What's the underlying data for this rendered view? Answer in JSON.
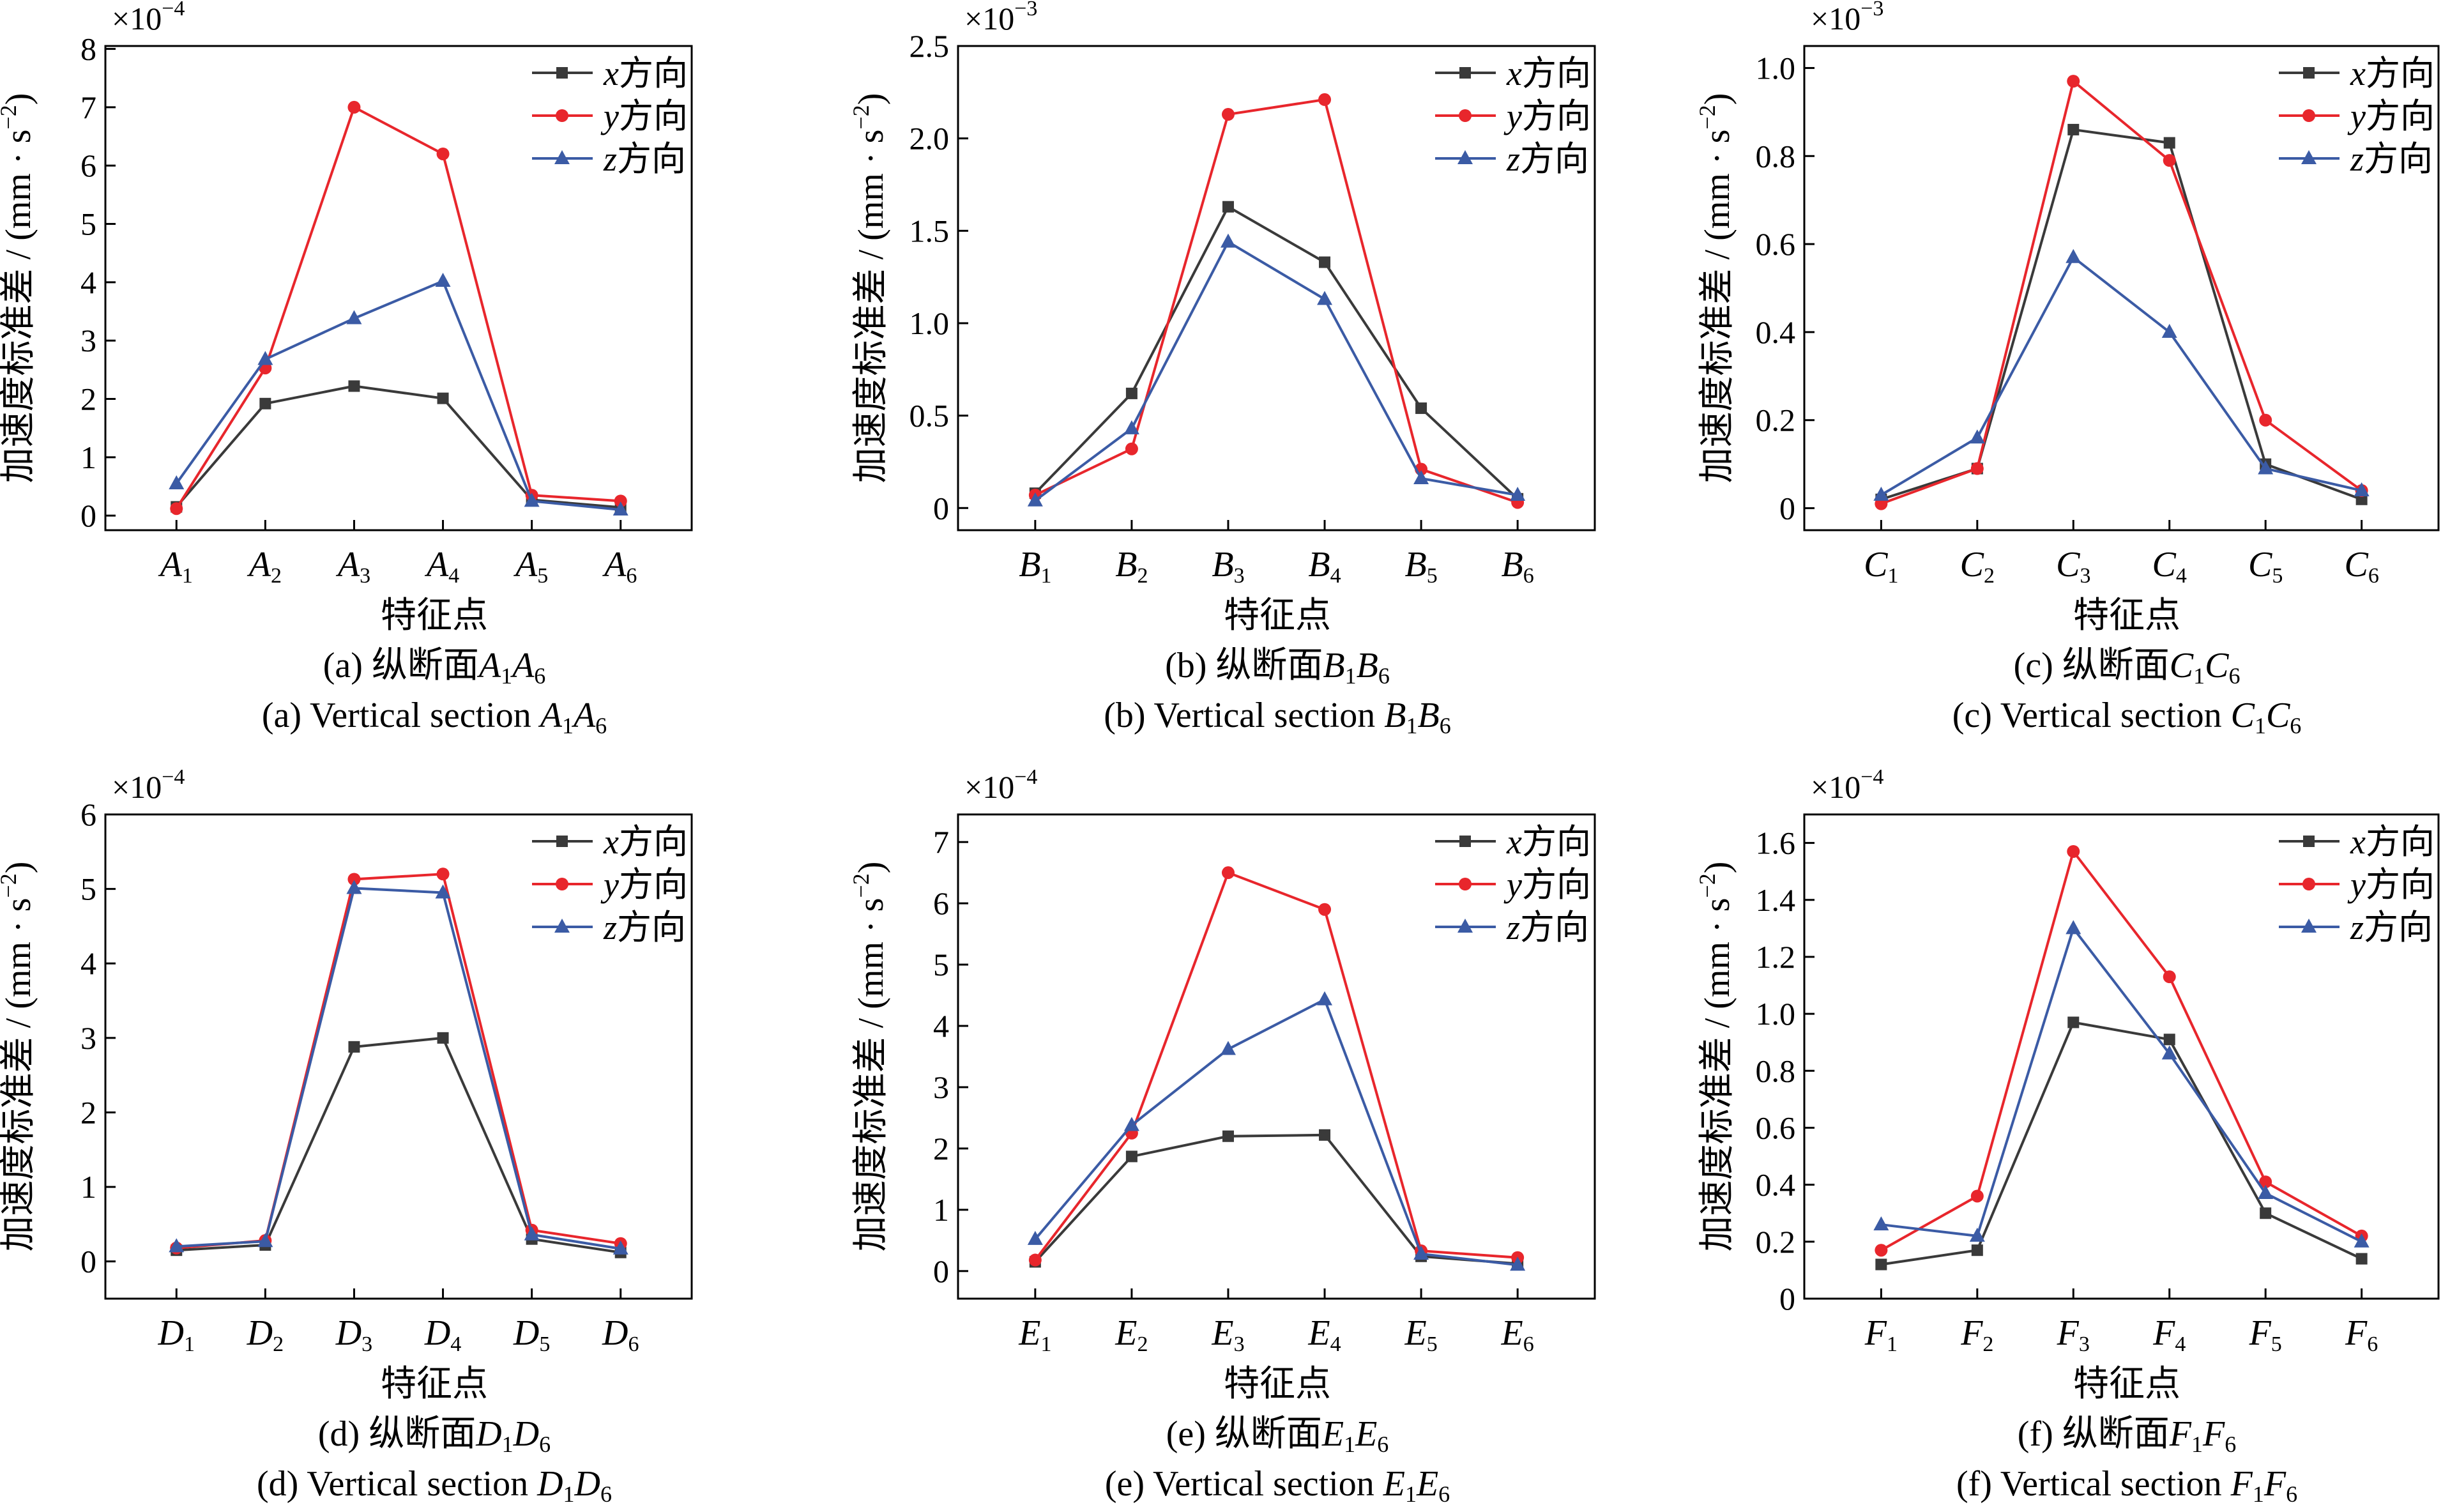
{
  "colors": {
    "x": "#3a3a3a",
    "y": "#e8262c",
    "z": "#3b5ba5"
  },
  "chart_data": [
    {
      "type": "line",
      "x": [
        "A1",
        "A2",
        "A3",
        "A4",
        "A5",
        "A6"
      ],
      "category_letter": "A",
      "category_subs": [
        "1",
        "2",
        "3",
        "4",
        "5",
        "6"
      ],
      "multiplier": "×10",
      "exponent": "−4",
      "ylim": [
        -0.25,
        8.05
      ],
      "yticks": [
        0,
        1,
        2,
        3,
        4,
        5,
        6,
        7,
        8
      ],
      "ytick_labels": [
        "0",
        "1",
        "2",
        "3",
        "4",
        "5",
        "6",
        "7",
        "8"
      ],
      "xlabel": "特征点",
      "ylabel": "加速度标准差 / (mm · s",
      "ylabel_sup": "−2",
      "ylabel_close": ")",
      "legend_position": "top-right",
      "series": [
        {
          "name": "x方向",
          "name_italic": "x",
          "name_rest": "方向",
          "marker": "square",
          "values": [
            0.15,
            1.92,
            2.22,
            2.01,
            0.27,
            0.14
          ]
        },
        {
          "name": "y方向",
          "name_italic": "y",
          "name_rest": "方向",
          "marker": "circle",
          "values": [
            0.12,
            2.53,
            7.0,
            6.2,
            0.35,
            0.25
          ]
        },
        {
          "name": "z方向",
          "name_italic": "z",
          "name_rest": "方向",
          "marker": "triangle",
          "values": [
            0.55,
            2.68,
            3.38,
            4.02,
            0.25,
            0.1
          ]
        }
      ],
      "caption_cn_prefix": "(a) 纵断面",
      "caption_en_prefix": "(a) Vertical section ",
      "caption_letter": "A",
      "caption_sub_start": "1",
      "caption_sub_end": "6"
    },
    {
      "type": "line",
      "x": [
        "B1",
        "B2",
        "B3",
        "B4",
        "B5",
        "B6"
      ],
      "category_letter": "B",
      "category_subs": [
        "1",
        "2",
        "3",
        "4",
        "5",
        "6"
      ],
      "multiplier": "×10",
      "exponent": "−3",
      "ylim": [
        -0.12,
        2.5
      ],
      "yticks": [
        0,
        0.5,
        1.0,
        1.5,
        2.0,
        2.5
      ],
      "ytick_labels": [
        "0",
        "0.5",
        "1.0",
        "1.5",
        "2.0",
        "2.5"
      ],
      "xlabel": "特征点",
      "ylabel": "加速度标准差 / (mm · s",
      "ylabel_sup": "−2",
      "ylabel_close": ")",
      "legend_position": "top-right",
      "series": [
        {
          "name": "x方向",
          "name_italic": "x",
          "name_rest": "方向",
          "marker": "square",
          "values": [
            0.08,
            0.62,
            1.63,
            1.33,
            0.54,
            0.05
          ]
        },
        {
          "name": "y方向",
          "name_italic": "y",
          "name_rest": "方向",
          "marker": "circle",
          "values": [
            0.07,
            0.32,
            2.13,
            2.21,
            0.21,
            0.03
          ]
        },
        {
          "name": "z方向",
          "name_italic": "z",
          "name_rest": "方向",
          "marker": "triangle",
          "values": [
            0.04,
            0.43,
            1.44,
            1.13,
            0.16,
            0.07
          ]
        }
      ],
      "caption_cn_prefix": "(b) 纵断面",
      "caption_en_prefix": "(b) Vertical section ",
      "caption_letter": "B",
      "caption_sub_start": "1",
      "caption_sub_end": "6"
    },
    {
      "type": "line",
      "x": [
        "C1",
        "C2",
        "C3",
        "C4",
        "C5",
        "C6"
      ],
      "category_letter": "C",
      "category_subs": [
        "1",
        "2",
        "3",
        "4",
        "5",
        "6"
      ],
      "multiplier": "×10",
      "exponent": "−3",
      "ylim": [
        -0.05,
        1.05
      ],
      "yticks": [
        0,
        0.2,
        0.4,
        0.6,
        0.8,
        1.0
      ],
      "ytick_labels": [
        "0",
        "0.2",
        "0.4",
        "0.6",
        "0.8",
        "1.0"
      ],
      "xlabel": "特征点",
      "ylabel": "加速度标准差 / (mm · s",
      "ylabel_sup": "−2",
      "ylabel_close": ")",
      "legend_position": "top-right",
      "series": [
        {
          "name": "x方向",
          "name_italic": "x",
          "name_rest": "方向",
          "marker": "square",
          "values": [
            0.02,
            0.09,
            0.86,
            0.83,
            0.1,
            0.02
          ]
        },
        {
          "name": "y方向",
          "name_italic": "y",
          "name_rest": "方向",
          "marker": "circle",
          "values": [
            0.01,
            0.09,
            0.97,
            0.79,
            0.2,
            0.04
          ]
        },
        {
          "name": "z方向",
          "name_italic": "z",
          "name_rest": "方向",
          "marker": "triangle",
          "values": [
            0.03,
            0.16,
            0.57,
            0.4,
            0.09,
            0.04
          ]
        }
      ],
      "caption_cn_prefix": "(c) 纵断面",
      "caption_en_prefix": "(c) Vertical section ",
      "caption_letter": "C",
      "caption_sub_start": "1",
      "caption_sub_end": "6"
    },
    {
      "type": "line",
      "x": [
        "D1",
        "D2",
        "D3",
        "D4",
        "D5",
        "D6"
      ],
      "category_letter": "D",
      "category_subs": [
        "1",
        "2",
        "3",
        "4",
        "5",
        "6"
      ],
      "multiplier": "×10",
      "exponent": "−4",
      "ylim": [
        -0.5,
        6.0
      ],
      "yticks": [
        0,
        1,
        2,
        3,
        4,
        5,
        6
      ],
      "ytick_labels": [
        "0",
        "1",
        "2",
        "3",
        "4",
        "5",
        "6"
      ],
      "xlabel": "特征点",
      "ylabel": "加速度标准差 / (mm · s",
      "ylabel_sup": "−2",
      "ylabel_close": ")",
      "legend_position": "top-right",
      "series": [
        {
          "name": "x方向",
          "name_italic": "x",
          "name_rest": "方向",
          "marker": "square",
          "values": [
            0.15,
            0.22,
            2.88,
            3.0,
            0.3,
            0.12
          ]
        },
        {
          "name": "y方向",
          "name_italic": "y",
          "name_rest": "方向",
          "marker": "circle",
          "values": [
            0.18,
            0.28,
            5.13,
            5.2,
            0.42,
            0.24
          ]
        },
        {
          "name": "z方向",
          "name_italic": "z",
          "name_rest": "方向",
          "marker": "triangle",
          "values": [
            0.2,
            0.27,
            5.01,
            4.95,
            0.36,
            0.17
          ]
        }
      ],
      "caption_cn_prefix": "(d) 纵断面",
      "caption_en_prefix": "(d) Vertical section ",
      "caption_letter": "D",
      "caption_sub_start": "1",
      "caption_sub_end": "6"
    },
    {
      "type": "line",
      "x": [
        "E1",
        "E2",
        "E3",
        "E4",
        "E5",
        "E6"
      ],
      "category_letter": "E",
      "category_subs": [
        "1",
        "2",
        "3",
        "4",
        "5",
        "6"
      ],
      "multiplier": "×10",
      "exponent": "−4",
      "ylim": [
        -0.45,
        7.45
      ],
      "yticks": [
        0,
        1,
        2,
        3,
        4,
        5,
        6,
        7
      ],
      "ytick_labels": [
        "0",
        "1",
        "2",
        "3",
        "4",
        "5",
        "6",
        "7"
      ],
      "xlabel": "特征点",
      "ylabel": "加速度标准差 / (mm · s",
      "ylabel_sup": "−2",
      "ylabel_close": ")",
      "legend_position": "top-right",
      "series": [
        {
          "name": "x方向",
          "name_italic": "x",
          "name_rest": "方向",
          "marker": "square",
          "values": [
            0.15,
            1.87,
            2.2,
            2.22,
            0.24,
            0.12
          ]
        },
        {
          "name": "y方向",
          "name_italic": "y",
          "name_rest": "方向",
          "marker": "circle",
          "values": [
            0.18,
            2.25,
            6.5,
            5.9,
            0.33,
            0.22
          ]
        },
        {
          "name": "z方向",
          "name_italic": "z",
          "name_rest": "方向",
          "marker": "triangle",
          "values": [
            0.52,
            2.38,
            3.62,
            4.43,
            0.28,
            0.1
          ]
        }
      ],
      "caption_cn_prefix": "(e) 纵断面",
      "caption_en_prefix": "(e) Vertical section ",
      "caption_letter": "E",
      "caption_sub_start": "1",
      "caption_sub_end": "6"
    },
    {
      "type": "line",
      "x": [
        "F1",
        "F2",
        "F3",
        "F4",
        "F5",
        "F6"
      ],
      "category_letter": "F",
      "category_subs": [
        "1",
        "2",
        "3",
        "4",
        "5",
        "6"
      ],
      "multiplier": "×10",
      "exponent": "−4",
      "ylim": [
        0,
        1.7
      ],
      "yticks": [
        0,
        0.2,
        0.4,
        0.6,
        0.8,
        1.0,
        1.2,
        1.4,
        1.6
      ],
      "ytick_labels": [
        "0",
        "0.2",
        "0.4",
        "0.6",
        "0.8",
        "1.0",
        "1.2",
        "1.4",
        "1.6"
      ],
      "xlabel": "特征点",
      "ylabel": "加速度标准差 / (mm · s",
      "ylabel_sup": "−2",
      "ylabel_close": ")",
      "legend_position": "top-right",
      "series": [
        {
          "name": "x方向",
          "name_italic": "x",
          "name_rest": "方向",
          "marker": "square",
          "values": [
            0.12,
            0.17,
            0.97,
            0.91,
            0.3,
            0.14
          ]
        },
        {
          "name": "y方向",
          "name_italic": "y",
          "name_rest": "方向",
          "marker": "circle",
          "values": [
            0.17,
            0.36,
            1.57,
            1.13,
            0.41,
            0.22
          ]
        },
        {
          "name": "z方向",
          "name_italic": "z",
          "name_rest": "方向",
          "marker": "triangle",
          "values": [
            0.26,
            0.22,
            1.3,
            0.86,
            0.37,
            0.2
          ]
        }
      ],
      "caption_cn_prefix": "(f) 纵断面",
      "caption_en_prefix": "(f) Vertical section ",
      "caption_letter": "F",
      "caption_sub_start": "1",
      "caption_sub_end": "6"
    }
  ]
}
